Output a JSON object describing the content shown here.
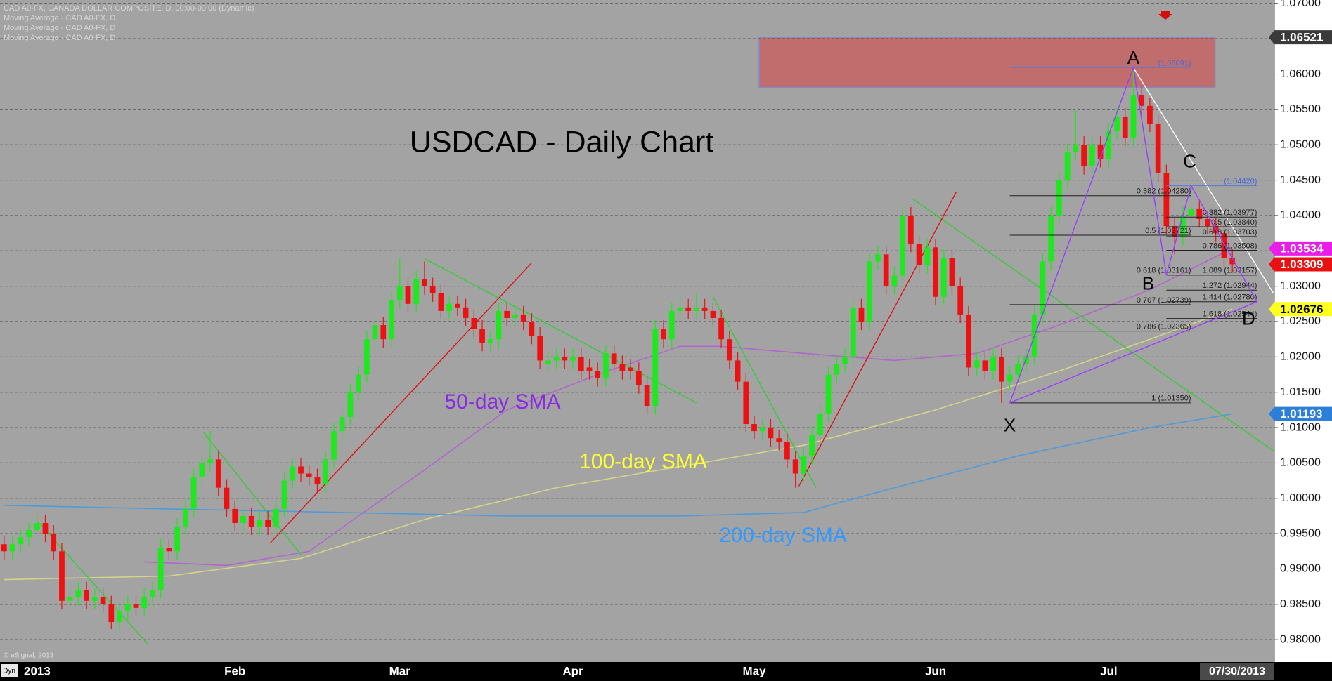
{
  "chart_data": {
    "type": "candlestick",
    "title": "USDCAD - Daily Chart",
    "header_lines": [
      "CAD A0-FX, CANADA DOLLAR COMPOSITE, D, 00:00-00:00 (Dynamic)",
      "Moving Average - CAD A0-FX, D",
      "Moving Average - CAD A0-FX, D",
      "Moving Average - CAD A0-FX, D"
    ],
    "copyright": "© eSignal, 2013",
    "mode_label": "Dyn",
    "x_cursor_label": "07/30/2013",
    "xlim": [
      -0.5,
      154.1
    ],
    "xticks": [
      {
        "value": 0,
        "label": "2013"
      },
      {
        "value": 28,
        "label": "Feb"
      },
      {
        "value": 48,
        "label": "Mar"
      },
      {
        "value": 69,
        "label": "Apr"
      },
      {
        "value": 91,
        "label": "May"
      },
      {
        "value": 113,
        "label": "Jun"
      },
      {
        "value": 134,
        "label": "Jul"
      }
    ],
    "ylim": [
      0.97684,
      1.07048
    ],
    "yticks": [
      {
        "value": 0.98,
        "label": "0.98000"
      },
      {
        "value": 0.985,
        "label": "0.98500"
      },
      {
        "value": 0.99,
        "label": "0.99000"
      },
      {
        "value": 0.995,
        "label": "0.99500"
      },
      {
        "value": 1.0,
        "label": "1.00000"
      },
      {
        "value": 1.005,
        "label": "1.00500"
      },
      {
        "value": 1.01,
        "label": "1.01000"
      },
      {
        "value": 1.015,
        "label": "1.01500"
      },
      {
        "value": 1.02,
        "label": "1.02000"
      },
      {
        "value": 1.025,
        "label": "1.02500"
      },
      {
        "value": 1.03,
        "label": "1.03000"
      },
      {
        "value": 1.035,
        "label": "1.03500"
      },
      {
        "value": 1.04,
        "label": "1.04000"
      },
      {
        "value": 1.045,
        "label": "1.04500"
      },
      {
        "value": 1.05,
        "label": "1.05000"
      },
      {
        "value": 1.055,
        "label": "1.05500"
      },
      {
        "value": 1.06,
        "label": "1.06000"
      },
      {
        "value": 1.065,
        "label": "1.06500"
      },
      {
        "value": 1.07,
        "label": "1.07000"
      }
    ],
    "grid": true,
    "up_color": "#1ee81e",
    "down_color": "#ee1111",
    "open": [
      0.9935,
      0.9925,
      0.9935,
      0.9945,
      0.9955,
      0.9965,
      0.995,
      0.9925,
      0.9855,
      0.986,
      0.987,
      0.9855,
      0.986,
      0.985,
      0.9825,
      0.984,
      0.985,
      0.9845,
      0.986,
      0.987,
      0.993,
      0.9925,
      0.996,
      0.9985,
      1.003,
      1.005,
      1.0055,
      1.0015,
      0.9985,
      0.9965,
      0.9975,
      0.996,
      0.997,
      0.996,
      0.9985,
      1.0025,
      1.0045,
      1.0035,
      1.003,
      1.002,
      1.0055,
      1.0095,
      1.0115,
      1.015,
      1.0175,
      1.0225,
      1.0245,
      1.0225,
      1.028,
      1.03,
      1.0275,
      1.031,
      1.03,
      1.029,
      1.0265,
      1.0275,
      1.027,
      1.0255,
      1.024,
      1.022,
      1.0225,
      1.0265,
      1.0255,
      1.026,
      1.025,
      1.023,
      1.019,
      1.0195,
      1.02,
      1.0195,
      1.02,
      1.0185,
      1.018,
      1.017,
      1.0205,
      1.019,
      1.0185,
      1.018,
      1.016,
      1.013,
      1.024,
      1.0225,
      1.0265,
      1.027,
      1.0265,
      1.027,
      1.0265,
      1.0255,
      1.0225,
      1.0195,
      1.0165,
      1.0105,
      1.0095,
      1.01,
      1.0085,
      1.008,
      1.0055,
      1.0035,
      1.006,
      1.009,
      1.012,
      1.0175,
      1.019,
      1.02,
      1.027,
      1.025,
      1.0335,
      1.0345,
      1.03,
      1.0315,
      1.04,
      1.036,
      1.033,
      1.0355,
      1.0285,
      1.034,
      1.03,
      1.026,
      1.0185,
      1.0195,
      1.018,
      1.02,
      1.0165,
      1.0175,
      1.019,
      1.02,
      1.026,
      1.0335,
      1.04,
      1.045,
      1.049,
      1.05,
      1.047,
      1.05,
      1.048,
      1.052,
      1.054,
      1.051,
      1.057,
      1.0555,
      1.053,
      1.046,
      1.0385,
      1.037,
      1.04,
      1.041,
      1.0395,
      1.0385,
      1.0375,
      1.034
    ],
    "high": [
      0.9947,
      0.9947,
      0.9957,
      0.9967,
      0.9977,
      0.9977,
      0.9962,
      0.9937,
      0.9872,
      0.9882,
      0.9882,
      0.9872,
      0.9872,
      0.9862,
      0.9852,
      0.9862,
      0.9862,
      0.9872,
      0.9882,
      0.9942,
      0.9942,
      0.9972,
      0.9997,
      1.0042,
      1.0062,
      1.0095,
      1.0067,
      1.0027,
      0.9997,
      0.9987,
      0.9987,
      0.9982,
      0.9982,
      0.9997,
      1.0037,
      1.0057,
      1.0057,
      1.0047,
      1.0042,
      1.0067,
      1.0107,
      1.0127,
      1.0162,
      1.0187,
      1.0237,
      1.0257,
      1.0257,
      1.0292,
      1.034,
      1.0312,
      1.0322,
      1.0335,
      1.0312,
      1.0302,
      1.0287,
      1.0287,
      1.0282,
      1.0267,
      1.0252,
      1.0237,
      1.0277,
      1.0277,
      1.0272,
      1.0272,
      1.0262,
      1.0242,
      1.0207,
      1.0212,
      1.0212,
      1.0212,
      1.0212,
      1.0197,
      1.0192,
      1.0217,
      1.0217,
      1.0202,
      1.0197,
      1.0192,
      1.0172,
      1.0252,
      1.0252,
      1.0277,
      1.029,
      1.0282,
      1.029,
      1.0282,
      1.0277,
      1.0267,
      1.0237,
      1.0207,
      1.0177,
      1.0117,
      1.0112,
      1.0112,
      1.0097,
      1.0092,
      1.0067,
      1.0072,
      1.0102,
      1.0132,
      1.0187,
      1.0202,
      1.0212,
      1.0282,
      1.0282,
      1.0347,
      1.0357,
      1.0357,
      1.0327,
      1.0412,
      1.0412,
      1.0372,
      1.0367,
      1.0367,
      1.0352,
      1.0352,
      1.0312,
      1.0272,
      1.0207,
      1.0207,
      1.0212,
      1.0212,
      1.0187,
      1.0202,
      1.0212,
      1.0272,
      1.0347,
      1.0412,
      1.0462,
      1.0502,
      1.055,
      1.0512,
      1.0512,
      1.0512,
      1.0532,
      1.0552,
      1.0552,
      1.0609,
      1.0582,
      1.0567,
      1.0542,
      1.0472,
      1.0397,
      1.0412,
      1.0442,
      1.0422,
      1.0407,
      1.0397,
      1.0387,
      1.0352
    ],
    "low": [
      0.9913,
      0.9913,
      0.9923,
      0.9933,
      0.9943,
      0.9938,
      0.9913,
      0.9843,
      0.9843,
      0.9848,
      0.9843,
      0.9843,
      0.9838,
      0.9815,
      0.9813,
      0.9828,
      0.9833,
      0.9833,
      0.9848,
      0.9858,
      0.9913,
      0.9913,
      0.9948,
      0.9973,
      1.0018,
      1.0038,
      1.0003,
      0.9973,
      0.9953,
      0.9953,
      0.9948,
      0.9948,
      0.9948,
      0.9948,
      0.9973,
      1.0013,
      1.0023,
      1.0018,
      1.0008,
      1.0008,
      1.0043,
      1.0083,
      1.0103,
      1.0138,
      1.0163,
      1.0213,
      1.0213,
      1.0213,
      1.0268,
      1.0263,
      1.0263,
      1.0288,
      1.0278,
      1.0253,
      1.0253,
      1.0258,
      1.0243,
      1.0228,
      1.0208,
      1.0208,
      1.0213,
      1.0243,
      1.0243,
      1.0238,
      1.0218,
      1.0183,
      1.0178,
      1.0183,
      1.0183,
      1.0183,
      1.0168,
      1.0168,
      1.0158,
      1.0158,
      1.0178,
      1.0168,
      1.0168,
      1.0148,
      1.0118,
      1.0118,
      1.0213,
      1.0213,
      1.0253,
      1.0253,
      1.0253,
      1.0253,
      1.0243,
      1.0213,
      1.0183,
      1.0153,
      1.0093,
      1.0083,
      1.0083,
      1.0073,
      1.0068,
      1.0043,
      1.0015,
      1.0023,
      1.0048,
      1.0078,
      1.0108,
      1.0163,
      1.0178,
      1.0188,
      1.0238,
      1.0238,
      1.0323,
      1.0288,
      1.0288,
      1.0303,
      1.0348,
      1.0318,
      1.0318,
      1.0273,
      1.0273,
      1.0288,
      1.0248,
      1.0173,
      1.0173,
      1.0168,
      1.0168,
      1.0135,
      1.0153,
      1.0163,
      1.0178,
      1.0188,
      1.0248,
      1.0323,
      1.0388,
      1.0438,
      1.0478,
      1.0458,
      1.0458,
      1.0468,
      1.0468,
      1.0508,
      1.0498,
      1.0498,
      1.0543,
      1.0518,
      1.0448,
      1.0373,
      1.0345,
      1.0358,
      1.0388,
      1.0383,
      1.0373,
      1.0363,
      1.0328,
      1.0319
    ],
    "close": [
      0.9925,
      0.9935,
      0.9945,
      0.9955,
      0.9965,
      0.995,
      0.9925,
      0.9855,
      0.986,
      0.987,
      0.9855,
      0.986,
      0.985,
      0.9825,
      0.984,
      0.985,
      0.9845,
      0.986,
      0.987,
      0.993,
      0.9925,
      0.996,
      0.9985,
      1.003,
      1.005,
      1.0055,
      1.0015,
      0.9985,
      0.9965,
      0.9975,
      0.996,
      0.997,
      0.996,
      0.9985,
      1.0025,
      1.0045,
      1.0035,
      1.003,
      1.002,
      1.0055,
      1.0095,
      1.0115,
      1.015,
      1.0175,
      1.0225,
      1.0245,
      1.0225,
      1.028,
      1.03,
      1.0275,
      1.031,
      1.03,
      1.029,
      1.0265,
      1.0275,
      1.027,
      1.0255,
      1.024,
      1.022,
      1.0225,
      1.0265,
      1.0255,
      1.026,
      1.025,
      1.023,
      1.0195,
      1.0195,
      1.02,
      1.0195,
      1.02,
      1.018,
      1.018,
      1.017,
      1.0205,
      1.019,
      1.018,
      1.018,
      1.016,
      1.013,
      1.024,
      1.0225,
      1.0265,
      1.027,
      1.0265,
      1.027,
      1.0265,
      1.0255,
      1.0225,
      1.0195,
      1.0165,
      1.0105,
      1.0095,
      1.01,
      1.0085,
      1.008,
      1.0055,
      1.0035,
      1.006,
      1.009,
      1.012,
      1.0175,
      1.019,
      1.02,
      1.027,
      1.025,
      1.0335,
      1.0345,
      1.03,
      1.0315,
      1.04,
      1.036,
      1.033,
      1.0355,
      1.0285,
      1.034,
      1.03,
      1.026,
      1.0185,
      1.0195,
      1.018,
      1.02,
      1.0165,
      1.0175,
      1.019,
      1.02,
      1.026,
      1.0335,
      1.04,
      1.045,
      1.049,
      1.05,
      1.047,
      1.05,
      1.048,
      1.052,
      1.054,
      1.051,
      1.057,
      1.0555,
      1.053,
      1.046,
      1.0385,
      1.037,
      1.04,
      1.041,
      1.0395,
      1.0385,
      1.0375,
      1.034,
      1.0331
    ],
    "series": [
      {
        "name": "50-day SMA",
        "color": "#b266cc",
        "label_color": "#8a2be2",
        "x": [
          17,
          27,
          37,
          43,
          51,
          61,
          72,
          82,
          87,
          97,
          108,
          118,
          128,
          139,
          149
        ],
        "values": [
          0.991,
          0.9905,
          0.9925,
          0.9975,
          1.004,
          1.0125,
          1.0175,
          1.0215,
          1.0215,
          1.0205,
          1.0195,
          1.0205,
          1.0245,
          1.0295,
          1.03534
        ]
      },
      {
        "name": "100-day SMA",
        "color": "#d4d48a",
        "label_color": "#ffff33",
        "x": [
          0,
          20,
          36,
          51,
          67,
          82,
          97,
          113,
          128,
          139,
          149
        ],
        "values": [
          0.9885,
          0.989,
          0.9915,
          0.997,
          1.0015,
          1.0045,
          1.0075,
          1.0125,
          1.018,
          1.0225,
          1.02676
        ]
      },
      {
        "name": "200-day SMA",
        "color": "#4f9ad8",
        "label_color": "#3399ff",
        "x": [
          0,
          20,
          41,
          61,
          82,
          97,
          108,
          123,
          139,
          149
        ],
        "values": [
          0.999,
          0.9985,
          0.998,
          0.9975,
          0.9975,
          0.998,
          1.0015,
          1.006,
          1.01,
          1.01193
        ]
      }
    ],
    "trendlines": [
      {
        "color": "#33cc33",
        "x": [
          4.1,
          17.5
        ],
        "values": [
          0.9967,
          0.9793
        ]
      },
      {
        "color": "#33cc33",
        "x": [
          24.2,
          36.1
        ],
        "values": [
          1.0093,
          0.9919
        ]
      },
      {
        "color": "#33cc33",
        "x": [
          51,
          84
        ],
        "values": [
          1.0339,
          1.0135
        ]
      },
      {
        "color": "#33cc33",
        "x": [
          86,
          98.5
        ],
        "values": [
          1.0285,
          1.0015
        ]
      },
      {
        "color": "#33cc33",
        "x": [
          110.3,
          154
        ],
        "values": [
          1.0423,
          1.0067
        ]
      },
      {
        "color": "#e01010",
        "x": [
          32.3,
          64
        ],
        "values": [
          0.9937,
          1.0333
        ]
      },
      {
        "color": "#e01010",
        "x": [
          96.4,
          115.5
        ],
        "values": [
          1.0017,
          1.0433
        ]
      },
      {
        "color": "#ffffff",
        "x": [
          137,
          154
        ],
        "values": [
          1.0609,
          1.029
        ]
      }
    ],
    "zone": {
      "color": "#c86464",
      "x": [
        91.6,
        146.9
      ],
      "y": [
        1.0581,
        1.0652
      ]
    },
    "pattern": {
      "color": "#9b3cff",
      "points": [
        {
          "label": "X",
          "x": 122,
          "value": 1.0135
        },
        {
          "label": "A",
          "x": 137,
          "value": 1.06091
        },
        {
          "label": "B",
          "x": 141,
          "value": 1.0316
        },
        {
          "label": "C",
          "x": 144,
          "value": 1.0442
        },
        {
          "label": "D",
          "x": 152,
          "value": 1.0278
        }
      ]
    },
    "fib_levels": [
      {
        "color": "#222222",
        "levels": [
          {
            "value": 1.06091,
            "label": "(1.06091)"
          },
          {
            "value": 1.0428,
            "label": "0.382 (1.04280)"
          },
          {
            "value": 1.03721,
            "label": "0.5 (1.03721)"
          },
          {
            "value": 1.03161,
            "label": "0.618 (1.03161)"
          },
          {
            "value": 1.02739,
            "label": "0.707 (1.02739)"
          },
          {
            "value": 1.02365,
            "label": "0.786 (1.02365)"
          },
          {
            "value": 1.0135,
            "label": "1 (1.01350)"
          }
        ]
      },
      {
        "color": "#222222",
        "levels": [
          {
            "value": 1.0442,
            "label": "(1.04420)"
          },
          {
            "value": 1.03977,
            "label": "0.382 (1.03977)"
          },
          {
            "value": 1.0384,
            "label": "0.5 (1.03840)"
          },
          {
            "value": 1.03703,
            "label": "0.618 (1.03703)"
          },
          {
            "value": 1.03508,
            "label": "0.786 (1.03508)"
          },
          {
            "value": 1.03157,
            "label": "1.089 (1.03157)"
          },
          {
            "value": 1.02944,
            "label": "1.272 (1.02944)"
          },
          {
            "value": 1.0278,
            "label": "1.414 (1.02780)"
          },
          {
            "value": 1.02544,
            "label": "1.618 (1.02544)"
          }
        ]
      }
    ],
    "price_flags": [
      {
        "value": 1.06521,
        "label": "1.06521",
        "color": "#3a3a3a",
        "text_color": "#ffffff"
      },
      {
        "value": 1.03534,
        "label": "1.03534",
        "color": "#e81ee8",
        "text_color": "#ffffff"
      },
      {
        "value": 1.03309,
        "label": "1.03309",
        "color": "#e81010",
        "text_color": "#ffffff"
      },
      {
        "value": 1.02676,
        "label": "1.02676",
        "color": "#ffff20",
        "text_color": "#000000"
      },
      {
        "value": 1.01193,
        "label": "1.01193",
        "color": "#2b7fd8",
        "text_color": "#ffffff"
      }
    ]
  }
}
